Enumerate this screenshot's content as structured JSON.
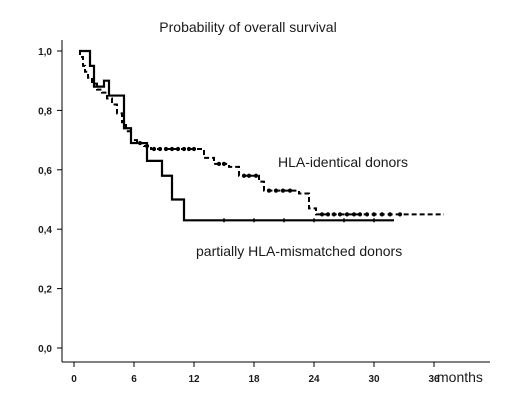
{
  "chart_data": {
    "type": "line",
    "title": "Probability of overall survival",
    "xlabel": "",
    "ylabel": "",
    "x_unit_label": "months",
    "xlim": [
      -1,
      38
    ],
    "ylim": [
      0,
      1.0
    ],
    "x_ticks": [
      0,
      6,
      12,
      18,
      24,
      30,
      36
    ],
    "y_ticks": [
      {
        "value": 0.0,
        "label": "0,0"
      },
      {
        "value": 0.2,
        "label": "0,2"
      },
      {
        "value": 0.4,
        "label": "0,4"
      },
      {
        "value": 0.6,
        "label": "0,6"
      },
      {
        "value": 0.8,
        "label": "0,8"
      },
      {
        "value": 1.0,
        "label": "1,0"
      }
    ],
    "grid": false,
    "legend": "none",
    "series": [
      {
        "name": "HLA-identical donors",
        "style": "dashed",
        "color": "#000000",
        "step_points": [
          [
            0.5,
            1.0
          ],
          [
            0.6,
            0.98
          ],
          [
            0.9,
            0.95
          ],
          [
            1.1,
            0.93
          ],
          [
            1.4,
            0.91
          ],
          [
            1.8,
            0.89
          ],
          [
            2.3,
            0.87
          ],
          [
            2.8,
            0.86
          ],
          [
            3.3,
            0.84
          ],
          [
            3.8,
            0.82
          ],
          [
            4.3,
            0.79
          ],
          [
            4.8,
            0.76
          ],
          [
            5.2,
            0.73
          ],
          [
            5.7,
            0.7
          ],
          [
            6.3,
            0.69
          ],
          [
            7.0,
            0.68
          ],
          [
            7.7,
            0.67
          ],
          [
            13.0,
            0.64
          ],
          [
            14.0,
            0.62
          ],
          [
            15.5,
            0.61
          ],
          [
            16.5,
            0.58
          ],
          [
            18.5,
            0.56
          ],
          [
            19.0,
            0.53
          ],
          [
            22.5,
            0.52
          ],
          [
            23.5,
            0.47
          ],
          [
            24.2,
            0.45
          ],
          [
            37.0,
            0.45
          ]
        ],
        "censor_x": [
          6.6,
          7.3,
          8.0,
          8.6,
          9.2,
          9.8,
          10.4,
          11.0,
          11.5,
          12.0,
          14.5,
          15.0,
          17.0,
          17.5,
          18.2,
          19.5,
          20.2,
          20.9,
          21.6,
          24.8,
          25.4,
          26.0,
          26.6,
          27.3,
          28.0,
          28.6,
          29.3,
          30.0,
          30.8,
          31.6,
          32.6
        ]
      },
      {
        "name": "partially HLA-mismatched donors",
        "style": "solid",
        "color": "#000000",
        "step_points": [
          [
            0.5,
            1.0
          ],
          [
            1.6,
            0.95
          ],
          [
            2.0,
            0.88
          ],
          [
            3.0,
            0.9
          ],
          [
            3.5,
            0.85
          ],
          [
            4.7,
            0.85
          ],
          [
            5.0,
            0.74
          ],
          [
            5.7,
            0.69
          ],
          [
            7.3,
            0.63
          ],
          [
            8.8,
            0.58
          ],
          [
            9.8,
            0.5
          ],
          [
            11.0,
            0.43
          ],
          [
            32.0,
            0.43
          ]
        ],
        "censor_x": [
          15.0,
          18.0,
          21.0,
          24.0,
          27.0,
          30.0
        ]
      }
    ],
    "annotations": [
      {
        "text": "HLA-identical donors",
        "series": "HLA-identical donors"
      },
      {
        "text": "partially HLA-mismatched donors",
        "series": "partially HLA-mismatched donors"
      }
    ]
  }
}
